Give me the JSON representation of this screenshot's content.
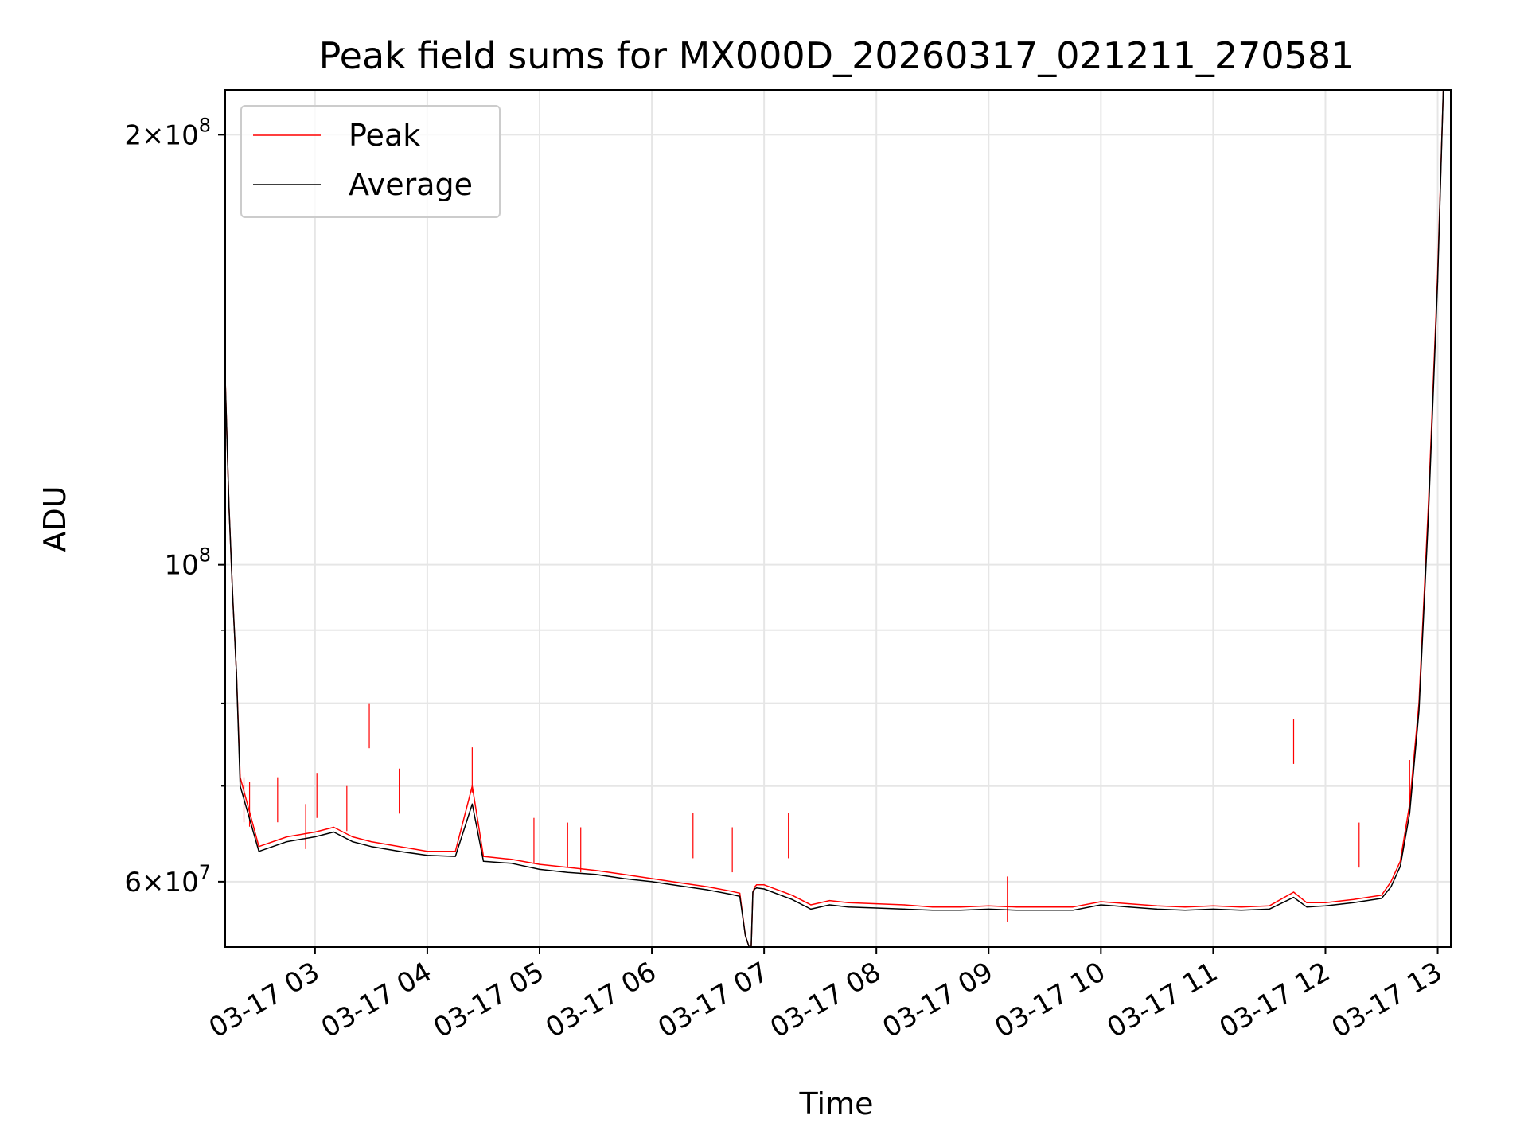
{
  "chart_data": {
    "type": "line",
    "title": "Peak field sums for MX000D_20260317_021211_270581",
    "xlabel": "Time",
    "ylabel": "ADU",
    "y_scale": "log",
    "ylim": [
      54000000,
      215000000
    ],
    "xlim": [
      "03-17 02:12",
      "03-17 13:07"
    ],
    "grid": true,
    "legend_position": "upper-left",
    "x_ticks": [
      "03-17 03",
      "03-17 04",
      "03-17 05",
      "03-17 06",
      "03-17 07",
      "03-17 08",
      "03-17 09",
      "03-17 10",
      "03-17 11",
      "03-17 12",
      "03-17 13"
    ],
    "y_ticks": [
      {
        "value": 60000000,
        "mantissa": "6",
        "exponent": "7"
      },
      {
        "value": 100000000,
        "mantissa": "",
        "exponent": "8"
      },
      {
        "value": 200000000,
        "mantissa": "2",
        "exponent": "8"
      }
    ],
    "x": [
      "03-17 02:12",
      "03-17 02:14",
      "03-17 02:16",
      "03-17 02:18",
      "03-17 02:20",
      "03-17 02:30",
      "03-17 02:45",
      "03-17 03:00",
      "03-17 03:10",
      "03-17 03:20",
      "03-17 03:30",
      "03-17 03:45",
      "03-17 04:00",
      "03-17 04:15",
      "03-17 04:24",
      "03-17 04:30",
      "03-17 04:45",
      "03-17 05:00",
      "03-17 05:15",
      "03-17 05:30",
      "03-17 05:45",
      "03-17 06:00",
      "03-17 06:15",
      "03-17 06:30",
      "03-17 06:42",
      "03-17 06:47",
      "03-17 06:50",
      "03-17 06:53",
      "03-17 06:54",
      "03-17 06:55",
      "03-17 06:56",
      "03-17 07:00",
      "03-17 07:15",
      "03-17 07:25",
      "03-17 07:35",
      "03-17 07:45",
      "03-17 08:00",
      "03-17 08:15",
      "03-17 08:30",
      "03-17 08:45",
      "03-17 09:00",
      "03-17 09:15",
      "03-17 09:30",
      "03-17 09:45",
      "03-17 10:00",
      "03-17 10:15",
      "03-17 10:30",
      "03-17 10:45",
      "03-17 11:00",
      "03-17 11:15",
      "03-17 11:30",
      "03-17 11:43",
      "03-17 11:50",
      "03-17 12:00",
      "03-17 12:15",
      "03-17 12:30",
      "03-17 12:35",
      "03-17 12:40",
      "03-17 12:45",
      "03-17 12:50",
      "03-17 12:55",
      "03-17 13:00",
      "03-17 13:03"
    ],
    "series": [
      {
        "name": "Peak",
        "color": "#ff0000",
        "values": [
          135000000,
          110000000,
          95000000,
          84000000,
          71000000,
          63500000,
          64500000,
          65000000,
          65500000,
          64500000,
          64000000,
          63500000,
          63000000,
          63000000,
          70000000,
          62500000,
          62200000,
          61700000,
          61400000,
          61100000,
          60700000,
          60300000,
          59900000,
          59500000,
          59100000,
          58900000,
          55000000,
          53500000,
          59000000,
          59500000,
          59700000,
          59700000,
          58700000,
          57800000,
          58200000,
          58000000,
          57900000,
          57800000,
          57600000,
          57600000,
          57700000,
          57600000,
          57600000,
          57600000,
          58100000,
          57900000,
          57700000,
          57600000,
          57700000,
          57600000,
          57700000,
          59000000,
          58000000,
          58000000,
          58300000,
          58700000,
          60000000,
          62000000,
          68000000,
          80000000,
          110000000,
          160000000,
          215000000
        ]
      },
      {
        "name": "Average",
        "color": "#000000",
        "values": [
          135000000,
          110000000,
          95000000,
          84000000,
          70000000,
          63000000,
          64000000,
          64500000,
          65000000,
          64000000,
          63500000,
          63000000,
          62600000,
          62500000,
          68000000,
          62000000,
          61800000,
          61200000,
          60900000,
          60700000,
          60300000,
          60000000,
          59600000,
          59200000,
          58800000,
          58600000,
          55000000,
          53500000,
          59000000,
          59300000,
          59400000,
          59300000,
          58300000,
          57400000,
          57800000,
          57600000,
          57500000,
          57400000,
          57300000,
          57300000,
          57400000,
          57300000,
          57300000,
          57300000,
          57800000,
          57600000,
          57400000,
          57300000,
          57400000,
          57300000,
          57400000,
          58500000,
          57600000,
          57700000,
          58000000,
          58400000,
          59500000,
          61500000,
          67000000,
          79000000,
          108000000,
          158000000,
          215000000
        ]
      }
    ],
    "peak_spikes": [
      {
        "x": "03-17 02:22",
        "y": 71000000
      },
      {
        "x": "03-17 02:25",
        "y": 70500000
      },
      {
        "x": "03-17 02:40",
        "y": 71000000
      },
      {
        "x": "03-17 02:55",
        "y": 68000000
      },
      {
        "x": "03-17 03:01",
        "y": 71500000
      },
      {
        "x": "03-17 03:17",
        "y": 70000000
      },
      {
        "x": "03-17 03:29",
        "y": 80000000
      },
      {
        "x": "03-17 03:45",
        "y": 72000000
      },
      {
        "x": "03-17 04:24",
        "y": 74500000
      },
      {
        "x": "03-17 04:57",
        "y": 66500000
      },
      {
        "x": "03-17 05:15",
        "y": 66000000
      },
      {
        "x": "03-17 05:22",
        "y": 65500000
      },
      {
        "x": "03-17 06:22",
        "y": 67000000
      },
      {
        "x": "03-17 06:43",
        "y": 65500000
      },
      {
        "x": "03-17 07:13",
        "y": 67000000
      },
      {
        "x": "03-17 09:10",
        "y": 60500000
      },
      {
        "x": "03-17 11:43",
        "y": 78000000
      },
      {
        "x": "03-17 12:18",
        "y": 66000000
      },
      {
        "x": "03-17 12:45",
        "y": 73000000
      }
    ]
  },
  "legend": {
    "items": [
      {
        "label": "Peak",
        "color": "#ff0000"
      },
      {
        "label": "Average",
        "color": "#000000"
      }
    ]
  }
}
